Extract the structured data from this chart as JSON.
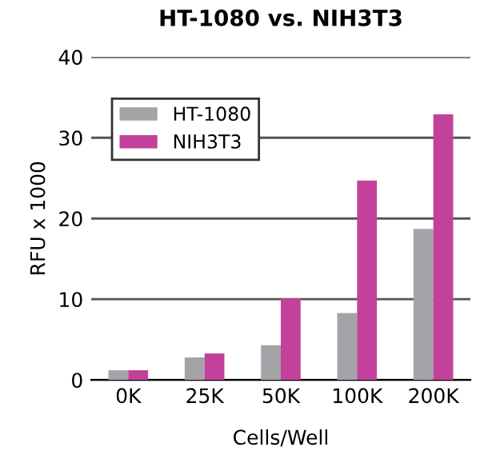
{
  "chart_data": {
    "type": "bar",
    "title": "HT-1080 vs. NIH3T3",
    "xlabel": "Cells/Well",
    "ylabel": "RFU x 1000",
    "categories": [
      "0K",
      "25K",
      "50K",
      "100K",
      "200K"
    ],
    "series": [
      {
        "name": "HT-1080",
        "color": "#a3a3a8",
        "values": [
          1.2,
          2.8,
          4.3,
          8.3,
          18.7
        ]
      },
      {
        "name": "NIH3T3",
        "color": "#c2419a",
        "values": [
          1.2,
          3.3,
          10.1,
          24.7,
          32.9
        ]
      }
    ],
    "ylim": [
      0,
      40
    ],
    "yticks": [
      0,
      10,
      20,
      30,
      40
    ],
    "grid": "y",
    "legend": "top left"
  }
}
